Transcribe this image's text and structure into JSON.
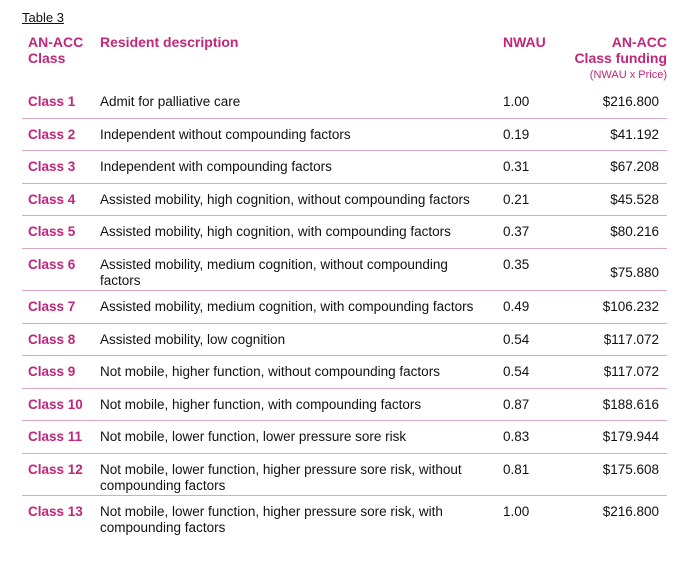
{
  "caption": "Table 3",
  "headers": {
    "class_line1": "AN-ACC",
    "class_line2": "Class",
    "description": "Resident description",
    "nwau": "NWAU",
    "funding_line1": "AN-ACC",
    "funding_line2": "Class funding",
    "funding_sub": "(NWAU x Price)"
  },
  "rows": [
    {
      "cls": "Class 1",
      "desc": "Admit for palliative care",
      "nwau": "1.00",
      "funding": "$216.800"
    },
    {
      "cls": "Class 2",
      "desc": "Independent without compounding factors",
      "nwau": "0.19",
      "funding": "$41.192"
    },
    {
      "cls": "Class 3",
      "desc": "Independent with compounding factors",
      "nwau": "0.31",
      "funding": "$67.208"
    },
    {
      "cls": "Class 4",
      "desc": "Assisted mobility, high cognition, without compounding factors",
      "nwau": "0.21",
      "funding": "$45.528"
    },
    {
      "cls": "Class 5",
      "desc": "Assisted mobility, high cognition, with compounding factors",
      "nwau": "0.37",
      "funding": "$80.216"
    },
    {
      "cls": "Class 6",
      "desc": "Assisted mobility, medium cognition, without compounding factors",
      "nwau": "0.35",
      "funding": "$75.880"
    },
    {
      "cls": "Class 7",
      "desc": "Assisted mobility, medium cognition, with compounding factors",
      "nwau": "0.49",
      "funding": "$106.232"
    },
    {
      "cls": "Class 8",
      "desc": "Assisted mobility, low cognition",
      "nwau": "0.54",
      "funding": "$117.072"
    },
    {
      "cls": "Class 9",
      "desc": "Not mobile, higher function, without compounding factors",
      "nwau": "0.54",
      "funding": "$117.072"
    },
    {
      "cls": "Class 10",
      "desc": "Not mobile, higher function, with compounding factors",
      "nwau": "0.87",
      "funding": "$188.616"
    },
    {
      "cls": "Class 11",
      "desc": "Not mobile, lower function, lower pressure sore risk",
      "nwau": "0.83",
      "funding": "$179.944"
    },
    {
      "cls": "Class 12",
      "desc": "Not mobile, lower function, higher pressure sore risk, without compounding factors",
      "nwau": "0.81",
      "funding": "$175.608"
    },
    {
      "cls": "Class 13",
      "desc": "Not mobile, lower function, higher pressure sore risk, with compounding factors",
      "nwau": "1.00",
      "funding": "$216.800"
    }
  ]
}
